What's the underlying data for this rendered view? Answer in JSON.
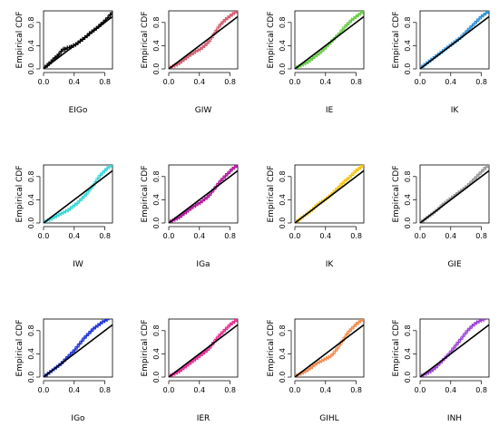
{
  "chart_data": [
    {
      "type": "scatter",
      "title": "EIGo",
      "xlabel": "EIGo",
      "ylabel": "Empirical CDF",
      "color": "#000000",
      "xlim": [
        0,
        0.9
      ],
      "ylim": [
        0,
        1
      ],
      "xticks": [
        "0.0",
        "0.4",
        "0.8"
      ],
      "yticks": [
        "0.0",
        "0.4",
        "0.8"
      ],
      "x": [
        0.02,
        0.05,
        0.07,
        0.1,
        0.12,
        0.15,
        0.18,
        0.2,
        0.23,
        0.26,
        0.28,
        0.31,
        0.34,
        0.36,
        0.39,
        0.42,
        0.45,
        0.48,
        0.51,
        0.54,
        0.57,
        0.6,
        0.63,
        0.66,
        0.69,
        0.72,
        0.75,
        0.78,
        0.81,
        0.84,
        0.87,
        0.9
      ],
      "y": [
        0.03,
        0.06,
        0.09,
        0.12,
        0.15,
        0.19,
        0.22,
        0.25,
        0.3,
        0.34,
        0.34,
        0.36,
        0.37,
        0.38,
        0.4,
        0.42,
        0.45,
        0.48,
        0.51,
        0.54,
        0.57,
        0.61,
        0.64,
        0.67,
        0.7,
        0.73,
        0.77,
        0.8,
        0.84,
        0.88,
        0.93,
        0.97
      ],
      "reference_line": [
        [
          0,
          0
        ],
        [
          1,
          1
        ]
      ]
    },
    {
      "type": "scatter",
      "title": "GIW",
      "xlabel": "GIW",
      "ylabel": "Empirical CDF",
      "color": "#d45a6e",
      "xlim": [
        0,
        0.9
      ],
      "ylim": [
        0,
        1
      ],
      "xticks": [
        "0.0",
        "0.4",
        "0.8"
      ],
      "yticks": [
        "0.0",
        "0.4",
        "0.8"
      ],
      "x": [
        0.02,
        0.05,
        0.08,
        0.11,
        0.14,
        0.17,
        0.2,
        0.23,
        0.26,
        0.29,
        0.32,
        0.35,
        0.38,
        0.41,
        0.44,
        0.47,
        0.5,
        0.53,
        0.56,
        0.59,
        0.62,
        0.65,
        0.68,
        0.71,
        0.74,
        0.77,
        0.8,
        0.83,
        0.86,
        0.89
      ],
      "y": [
        0.02,
        0.04,
        0.06,
        0.08,
        0.1,
        0.13,
        0.16,
        0.19,
        0.22,
        0.25,
        0.27,
        0.3,
        0.32,
        0.34,
        0.37,
        0.4,
        0.44,
        0.48,
        0.54,
        0.6,
        0.66,
        0.72,
        0.77,
        0.81,
        0.85,
        0.88,
        0.91,
        0.94,
        0.97,
        0.99
      ],
      "reference_line": [
        [
          0,
          0
        ],
        [
          1,
          1
        ]
      ]
    },
    {
      "type": "scatter",
      "title": "IE",
      "xlabel": "IE",
      "ylabel": "Empirical CDF",
      "color": "#66cc44",
      "xlim": [
        0,
        0.9
      ],
      "ylim": [
        0,
        1
      ],
      "xticks": [
        "0.0",
        "0.4",
        "0.8"
      ],
      "yticks": [
        "0.0",
        "0.4",
        "0.8"
      ],
      "x": [
        0.02,
        0.05,
        0.08,
        0.11,
        0.14,
        0.17,
        0.2,
        0.23,
        0.26,
        0.29,
        0.32,
        0.35,
        0.38,
        0.41,
        0.44,
        0.47,
        0.5,
        0.53,
        0.56,
        0.59,
        0.62,
        0.65,
        0.68,
        0.71,
        0.74,
        0.77,
        0.8,
        0.83,
        0.86,
        0.89
      ],
      "y": [
        0.02,
        0.04,
        0.06,
        0.08,
        0.1,
        0.12,
        0.15,
        0.18,
        0.21,
        0.24,
        0.27,
        0.3,
        0.34,
        0.38,
        0.42,
        0.46,
        0.5,
        0.54,
        0.58,
        0.62,
        0.67,
        0.72,
        0.76,
        0.8,
        0.84,
        0.87,
        0.9,
        0.93,
        0.96,
        0.99
      ],
      "reference_line": [
        [
          0,
          0
        ],
        [
          1,
          1
        ]
      ]
    },
    {
      "type": "scatter",
      "title": "IK",
      "xlabel": "IK",
      "ylabel": "Empirical CDF",
      "color": "#2b8fd6",
      "xlim": [
        0,
        0.9
      ],
      "ylim": [
        0,
        1
      ],
      "xticks": [
        "0.0",
        "0.4",
        "0.8"
      ],
      "yticks": [
        "0.0",
        "0.4",
        "0.8"
      ],
      "x": [
        0.02,
        0.05,
        0.08,
        0.11,
        0.14,
        0.17,
        0.2,
        0.23,
        0.26,
        0.29,
        0.32,
        0.35,
        0.38,
        0.41,
        0.44,
        0.47,
        0.5,
        0.53,
        0.56,
        0.59,
        0.62,
        0.65,
        0.68,
        0.71,
        0.74,
        0.77,
        0.8,
        0.83,
        0.86,
        0.89
      ],
      "y": [
        0.03,
        0.06,
        0.09,
        0.12,
        0.15,
        0.18,
        0.21,
        0.24,
        0.27,
        0.3,
        0.33,
        0.36,
        0.39,
        0.42,
        0.45,
        0.48,
        0.51,
        0.54,
        0.58,
        0.62,
        0.66,
        0.7,
        0.74,
        0.78,
        0.82,
        0.86,
        0.9,
        0.93,
        0.96,
        0.99
      ],
      "reference_line": [
        [
          0,
          0
        ],
        [
          1,
          1
        ]
      ]
    },
    {
      "type": "scatter",
      "title": "IW",
      "xlabel": "IW",
      "ylabel": "Empirical CDF",
      "color": "#33d6d6",
      "xlim": [
        0,
        0.9
      ],
      "ylim": [
        0,
        1
      ],
      "xticks": [
        "0.0",
        "0.4",
        "0.8"
      ],
      "yticks": [
        "0.0",
        "0.4",
        "0.8"
      ],
      "x": [
        0.02,
        0.05,
        0.08,
        0.11,
        0.14,
        0.17,
        0.2,
        0.23,
        0.26,
        0.29,
        0.32,
        0.35,
        0.38,
        0.41,
        0.44,
        0.47,
        0.5,
        0.53,
        0.56,
        0.59,
        0.62,
        0.65,
        0.68,
        0.71,
        0.74,
        0.77,
        0.8,
        0.83,
        0.86,
        0.89
      ],
      "y": [
        0.02,
        0.04,
        0.06,
        0.08,
        0.1,
        0.12,
        0.14,
        0.16,
        0.18,
        0.2,
        0.22,
        0.25,
        0.28,
        0.31,
        0.34,
        0.38,
        0.42,
        0.46,
        0.5,
        0.55,
        0.6,
        0.65,
        0.71,
        0.77,
        0.82,
        0.86,
        0.9,
        0.94,
        0.97,
        0.99
      ],
      "reference_line": [
        [
          0,
          0
        ],
        [
          1,
          1
        ]
      ]
    },
    {
      "type": "scatter",
      "title": "IGa",
      "xlabel": "IGa",
      "ylabel": "Empirical CDF",
      "color": "#b0159b",
      "xlim": [
        0,
        0.9
      ],
      "ylim": [
        0,
        1
      ],
      "xticks": [
        "0.0",
        "0.4",
        "0.8"
      ],
      "yticks": [
        "0.0",
        "0.4",
        "0.8"
      ],
      "x": [
        0.02,
        0.05,
        0.08,
        0.11,
        0.14,
        0.17,
        0.2,
        0.23,
        0.26,
        0.29,
        0.32,
        0.35,
        0.38,
        0.41,
        0.44,
        0.47,
        0.5,
        0.53,
        0.56,
        0.59,
        0.62,
        0.65,
        0.68,
        0.71,
        0.74,
        0.77,
        0.8,
        0.83,
        0.86,
        0.89
      ],
      "y": [
        0.02,
        0.04,
        0.06,
        0.08,
        0.1,
        0.13,
        0.16,
        0.19,
        0.22,
        0.25,
        0.28,
        0.3,
        0.33,
        0.35,
        0.38,
        0.41,
        0.44,
        0.48,
        0.53,
        0.58,
        0.63,
        0.68,
        0.73,
        0.77,
        0.81,
        0.85,
        0.89,
        0.93,
        0.96,
        0.99
      ],
      "reference_line": [
        [
          0,
          0
        ],
        [
          1,
          1
        ]
      ]
    },
    {
      "type": "scatter",
      "title": "IK",
      "xlabel": "IK",
      "ylabel": "Empirical CDF",
      "color": "#f2c40f",
      "xlim": [
        0,
        0.9
      ],
      "ylim": [
        0,
        1
      ],
      "xticks": [
        "0.0",
        "0.4",
        "0.8"
      ],
      "yticks": [
        "0.0",
        "0.4",
        "0.8"
      ],
      "x": [
        0.02,
        0.05,
        0.08,
        0.11,
        0.14,
        0.17,
        0.2,
        0.23,
        0.26,
        0.29,
        0.32,
        0.35,
        0.38,
        0.41,
        0.44,
        0.47,
        0.5,
        0.53,
        0.56,
        0.59,
        0.62,
        0.65,
        0.68,
        0.71,
        0.74,
        0.77,
        0.8,
        0.83,
        0.86,
        0.89
      ],
      "y": [
        0.02,
        0.05,
        0.08,
        0.11,
        0.14,
        0.17,
        0.2,
        0.23,
        0.27,
        0.31,
        0.34,
        0.36,
        0.39,
        0.42,
        0.45,
        0.48,
        0.52,
        0.56,
        0.6,
        0.64,
        0.68,
        0.72,
        0.75,
        0.78,
        0.82,
        0.86,
        0.9,
        0.93,
        0.96,
        0.99
      ],
      "reference_line": [
        [
          0,
          0
        ],
        [
          1,
          1
        ]
      ]
    },
    {
      "type": "scatter",
      "title": "GIE",
      "xlabel": "GIE",
      "ylabel": "Empirical CDF",
      "color": "#999999",
      "xlim": [
        0,
        0.9
      ],
      "ylim": [
        0,
        1
      ],
      "xticks": [
        "0.0",
        "0.4",
        "0.8"
      ],
      "yticks": [
        "0.0",
        "0.4",
        "0.8"
      ],
      "x": [
        0.02,
        0.05,
        0.08,
        0.11,
        0.14,
        0.17,
        0.2,
        0.23,
        0.26,
        0.29,
        0.32,
        0.35,
        0.38,
        0.41,
        0.44,
        0.47,
        0.5,
        0.53,
        0.56,
        0.59,
        0.62,
        0.65,
        0.68,
        0.71,
        0.74,
        0.77,
        0.8,
        0.83,
        0.86,
        0.89
      ],
      "y": [
        0.02,
        0.05,
        0.08,
        0.11,
        0.14,
        0.17,
        0.2,
        0.23,
        0.27,
        0.31,
        0.34,
        0.37,
        0.4,
        0.43,
        0.46,
        0.49,
        0.52,
        0.55,
        0.58,
        0.61,
        0.64,
        0.68,
        0.72,
        0.76,
        0.8,
        0.84,
        0.88,
        0.92,
        0.96,
        0.99
      ],
      "reference_line": [
        [
          0,
          0
        ],
        [
          1,
          1
        ]
      ]
    },
    {
      "type": "scatter",
      "title": "IGo",
      "xlabel": "IGo",
      "ylabel": "Empirical CDF",
      "color": "#1a2fd6",
      "xlim": [
        0,
        0.9
      ],
      "ylim": [
        0,
        1
      ],
      "xticks": [
        "0.0",
        "0.4",
        "0.8"
      ],
      "yticks": [
        "0.0",
        "0.4",
        "0.8"
      ],
      "x": [
        0.02,
        0.05,
        0.08,
        0.11,
        0.14,
        0.17,
        0.2,
        0.23,
        0.26,
        0.29,
        0.32,
        0.35,
        0.38,
        0.41,
        0.44,
        0.47,
        0.5,
        0.53,
        0.56,
        0.59,
        0.62,
        0.65,
        0.68,
        0.71,
        0.74,
        0.77,
        0.8,
        0.83
      ],
      "y": [
        0.02,
        0.05,
        0.08,
        0.11,
        0.14,
        0.17,
        0.2,
        0.23,
        0.27,
        0.31,
        0.35,
        0.39,
        0.43,
        0.47,
        0.52,
        0.57,
        0.62,
        0.67,
        0.71,
        0.75,
        0.79,
        0.83,
        0.86,
        0.89,
        0.92,
        0.95,
        0.97,
        0.99
      ],
      "reference_line": [
        [
          0,
          0
        ],
        [
          1,
          1
        ]
      ]
    },
    {
      "type": "scatter",
      "title": "IER",
      "xlabel": "IER",
      "ylabel": "Empirical CDF",
      "color": "#e8288f",
      "xlim": [
        0,
        0.9
      ],
      "ylim": [
        0,
        1
      ],
      "xticks": [
        "0.0",
        "0.4",
        "0.8"
      ],
      "yticks": [
        "0.0",
        "0.4",
        "0.8"
      ],
      "x": [
        0.02,
        0.05,
        0.08,
        0.11,
        0.14,
        0.17,
        0.2,
        0.23,
        0.26,
        0.29,
        0.32,
        0.35,
        0.38,
        0.41,
        0.44,
        0.47,
        0.5,
        0.53,
        0.56,
        0.59,
        0.62,
        0.65,
        0.68,
        0.71,
        0.74,
        0.77,
        0.8,
        0.83,
        0.86,
        0.89
      ],
      "y": [
        0.02,
        0.04,
        0.06,
        0.08,
        0.1,
        0.13,
        0.16,
        0.19,
        0.22,
        0.25,
        0.28,
        0.31,
        0.34,
        0.37,
        0.4,
        0.43,
        0.46,
        0.5,
        0.55,
        0.6,
        0.65,
        0.7,
        0.74,
        0.78,
        0.82,
        0.86,
        0.9,
        0.93,
        0.96,
        0.99
      ],
      "reference_line": [
        [
          0,
          0
        ],
        [
          1,
          1
        ]
      ]
    },
    {
      "type": "scatter",
      "title": "GIHL",
      "xlabel": "GIHL",
      "ylabel": "Empirical CDF",
      "color": "#f08a4b",
      "xlim": [
        0,
        0.9
      ],
      "ylim": [
        0,
        1
      ],
      "xticks": [
        "0.0",
        "0.4",
        "0.8"
      ],
      "yticks": [
        "0.0",
        "0.4",
        "0.8"
      ],
      "x": [
        0.02,
        0.05,
        0.08,
        0.11,
        0.14,
        0.17,
        0.2,
        0.23,
        0.26,
        0.29,
        0.32,
        0.35,
        0.38,
        0.41,
        0.44,
        0.47,
        0.5,
        0.53,
        0.56,
        0.59,
        0.62,
        0.65,
        0.68,
        0.71,
        0.74,
        0.77,
        0.8,
        0.83,
        0.86,
        0.89
      ],
      "y": [
        0.02,
        0.04,
        0.06,
        0.08,
        0.1,
        0.12,
        0.15,
        0.18,
        0.21,
        0.24,
        0.26,
        0.28,
        0.3,
        0.32,
        0.34,
        0.36,
        0.4,
        0.45,
        0.5,
        0.56,
        0.62,
        0.68,
        0.74,
        0.79,
        0.83,
        0.87,
        0.91,
        0.94,
        0.97,
        0.99
      ],
      "reference_line": [
        [
          0,
          0
        ],
        [
          1,
          1
        ]
      ]
    },
    {
      "type": "scatter",
      "title": "INH",
      "xlabel": "INH",
      "ylabel": "Empirical CDF",
      "color": "#9b3fd6",
      "xlim": [
        0,
        0.9
      ],
      "ylim": [
        0,
        1
      ],
      "xticks": [
        "0.0",
        "0.4",
        "0.8"
      ],
      "yticks": [
        "0.0",
        "0.4",
        "0.8"
      ],
      "x": [
        0.02,
        0.05,
        0.08,
        0.11,
        0.14,
        0.17,
        0.2,
        0.23,
        0.26,
        0.29,
        0.32,
        0.35,
        0.38,
        0.41,
        0.44,
        0.47,
        0.5,
        0.53,
        0.56,
        0.59,
        0.62,
        0.65,
        0.68,
        0.71,
        0.74,
        0.77,
        0.8,
        0.83
      ],
      "y": [
        0.02,
        0.04,
        0.06,
        0.08,
        0.1,
        0.13,
        0.16,
        0.2,
        0.24,
        0.28,
        0.32,
        0.36,
        0.4,
        0.45,
        0.5,
        0.55,
        0.6,
        0.65,
        0.7,
        0.75,
        0.8,
        0.84,
        0.88,
        0.91,
        0.94,
        0.96,
        0.98,
        0.99
      ],
      "reference_line": [
        [
          0,
          0
        ],
        [
          1,
          1
        ]
      ]
    }
  ]
}
